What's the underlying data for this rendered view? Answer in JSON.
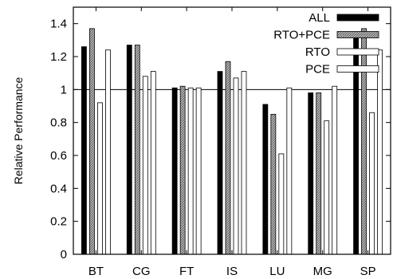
{
  "chart_data": {
    "type": "bar",
    "ylabel": "Relative Performance",
    "xlabel": "",
    "categories": [
      "BT",
      "CG",
      "FT",
      "IS",
      "LU",
      "MG",
      "SP"
    ],
    "ylim": [
      0,
      1.5
    ],
    "yticks": [
      0,
      0.2,
      0.4,
      0.6,
      0.8,
      1,
      1.2,
      1.4
    ],
    "yticks_text": [
      "0",
      "0.2",
      "0.4",
      "0.6",
      "0.8",
      "1",
      "1.2",
      "1.4"
    ],
    "reference_line": 1,
    "legend_position": "top-right",
    "series": [
      {
        "name": "ALL",
        "values": [
          1.26,
          1.27,
          1.01,
          1.11,
          0.91,
          0.98,
          1.33
        ],
        "fill": "#000000",
        "pattern": "solid"
      },
      {
        "name": "RTO+PCE",
        "values": [
          1.37,
          1.27,
          1.02,
          1.17,
          0.85,
          0.98,
          1.37
        ],
        "fill": "#8c8c8c",
        "pattern": "hatched"
      },
      {
        "name": "RTO",
        "values": [
          0.92,
          1.08,
          1.01,
          1.07,
          0.61,
          0.81,
          0.86
        ],
        "fill": "#ffffff",
        "pattern": "outline"
      },
      {
        "name": "PCE",
        "values": [
          1.24,
          1.11,
          1.01,
          1.11,
          1.01,
          1.02,
          1.24
        ],
        "fill": "#ffffff",
        "pattern": "outline"
      }
    ]
  }
}
